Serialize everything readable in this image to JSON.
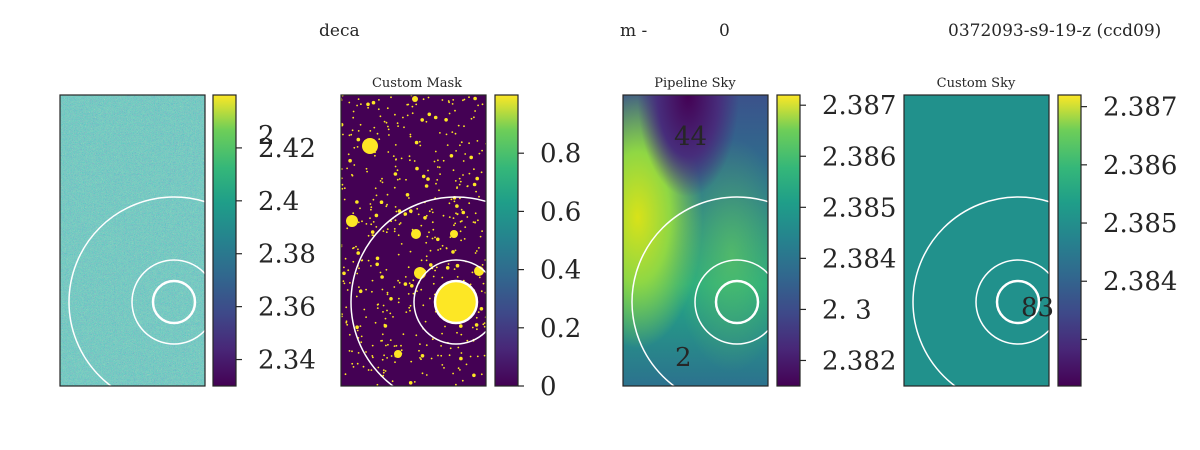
{
  "figure": {
    "title_segments": [
      "deca",
      "m  -",
      "0",
      "0372093-s9-19-z (ccd09)"
    ]
  },
  "chart_data": [
    {
      "type": "heatmap",
      "title": "",
      "description": "noisy image, viridis colormap, with three concentric annulus circles",
      "colorbar": {
        "ticks": [
          2.34,
          2.36,
          2.38,
          2.4,
          2.42
        ],
        "tick_labels": [
          "2.34",
          "2.36",
          "2.38",
          "2.4",
          "2.42"
        ],
        "extra_label": "2",
        "range": [
          2.33,
          2.44
        ]
      },
      "overlay_texts": []
    },
    {
      "type": "heatmap",
      "title": "Custom Mask",
      "description": "binary mask, yellow masked sources on dark background, with annulus circles",
      "colorbar": {
        "ticks": [
          0,
          0.2,
          0.4,
          0.6,
          0.8
        ],
        "tick_labels": [
          "0",
          "0.2",
          "0.4",
          "0.6",
          "0.8"
        ],
        "range": [
          0,
          1
        ]
      }
    },
    {
      "type": "heatmap",
      "title": "Pipeline Sky",
      "description": "smooth sky model",
      "colorbar": {
        "ticks": [
          2.382,
          2.383,
          2.384,
          2.385,
          2.386,
          2.387
        ],
        "tick_labels": [
          "2.382",
          "2.   3",
          "2.384",
          "2.385",
          "2.386",
          "2.387"
        ],
        "range": [
          2.3815,
          2.3872
        ]
      },
      "overlay_texts": [
        "44",
        "2"
      ]
    },
    {
      "type": "heatmap",
      "title": "Custom Sky",
      "description": "uniform sky model",
      "colorbar": {
        "ticks": [
          2.383,
          2.384,
          2.385,
          2.386,
          2.387
        ],
        "tick_labels": [
          "",
          "2.384",
          "2.385",
          "2.386",
          "2.387"
        ],
        "range": [
          2.3822,
          2.3872
        ]
      },
      "overlay_texts": [
        "83"
      ]
    }
  ],
  "colors": {
    "frame": "#262626",
    "uniform_sky": "#21918c",
    "mask_fg": "#fde725",
    "mask_bg": "#440154"
  }
}
